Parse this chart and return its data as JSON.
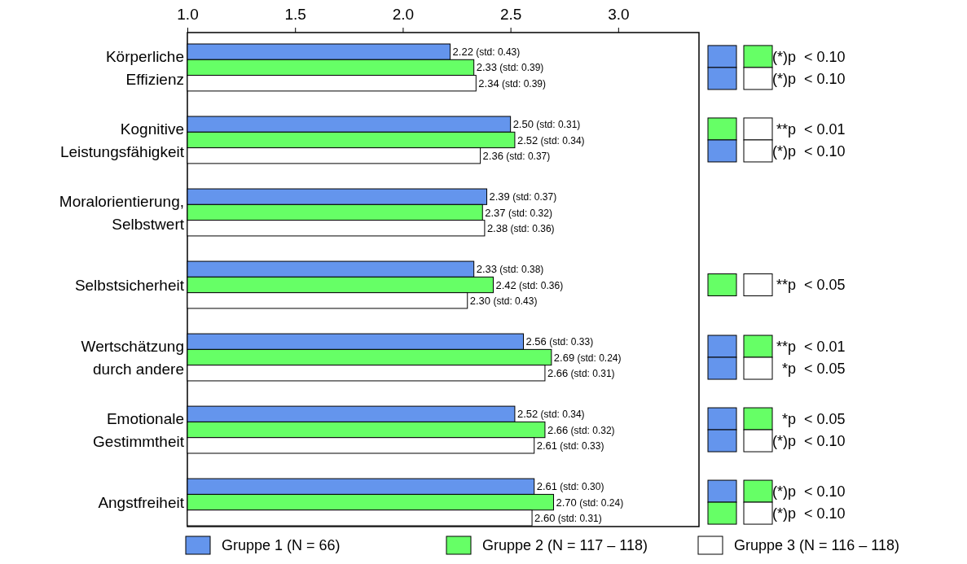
{
  "chart_data": {
    "type": "bar",
    "orientation": "horizontal",
    "categories": [
      "Körperliche\nEffizienz",
      "Kognitive\nLeistungsfähigkeit",
      "Moralorientierung,\nSelbstwert",
      "Selbstsicherheit",
      "Wertschätzung\ndurch andere",
      "Emotionale\nGestimmtheit",
      "Angstfreiheit"
    ],
    "series": [
      {
        "name": "Gruppe 1 (N = 66)",
        "color": "#6495ed",
        "values": [
          2.22,
          2.5,
          2.39,
          2.33,
          2.56,
          2.52,
          2.61
        ],
        "value_labels": [
          "2.22 (std: 0.43)",
          "2.50 (std: 0.31)",
          "2.39 (std: 0.37)",
          "2.33 (std: 0.38)",
          "2.56 (std: 0.33)",
          "2.52 (std: 0.34)",
          "2.61 (std: 0.30)"
        ]
      },
      {
        "name": "Gruppe 2 (N = 117 – 118)",
        "color": "#66ff66",
        "values": [
          2.33,
          2.52,
          2.37,
          2.42,
          2.69,
          2.66,
          2.7
        ],
        "value_labels": [
          "2.33 (std: 0.39)",
          "2.52 (std: 0.34)",
          "2.37 (std: 0.32)",
          "2.42 (std: 0.36)",
          "2.69 (std: 0.24)",
          "2.66 (std: 0.32)",
          "2.70 (std: 0.24)"
        ]
      },
      {
        "name": "Gruppe 3 (N = 116 – 118)",
        "color": "#ffffff",
        "values": [
          2.34,
          2.36,
          2.38,
          2.3,
          2.66,
          2.61,
          2.6
        ],
        "value_labels": [
          "2.34 (std: 0.39)",
          "2.36 (std: 0.37)",
          "2.38 (std: 0.36)",
          "2.30 (std: 0.43)",
          "2.66 (std: 0.31)",
          "2.61 (std: 0.33)",
          "2.60 (std: 0.31)"
        ]
      }
    ],
    "xlim": [
      1.0,
      3.375
    ],
    "xticks": [
      {
        "value": 1.0,
        "label": "1.0"
      },
      1.5,
      {
        "value": 2.0,
        "label": "2.0"
      },
      2.5,
      {
        "value": 3.0,
        "label": "3.0"
      }
    ],
    "annotations": [
      "(*)p < 0.10",
      "(*)p < 0.10",
      "**p < 0.01",
      "(*)p < 0.10",
      "**p < 0.05",
      "**p < 0.01",
      "*p < 0.05",
      "*p < 0.05",
      "(*)p < 0.10",
      "(*)p < 0.10",
      "(*)p < 0.10"
    ],
    "legend": "bottom",
    "grid": false
  }
}
